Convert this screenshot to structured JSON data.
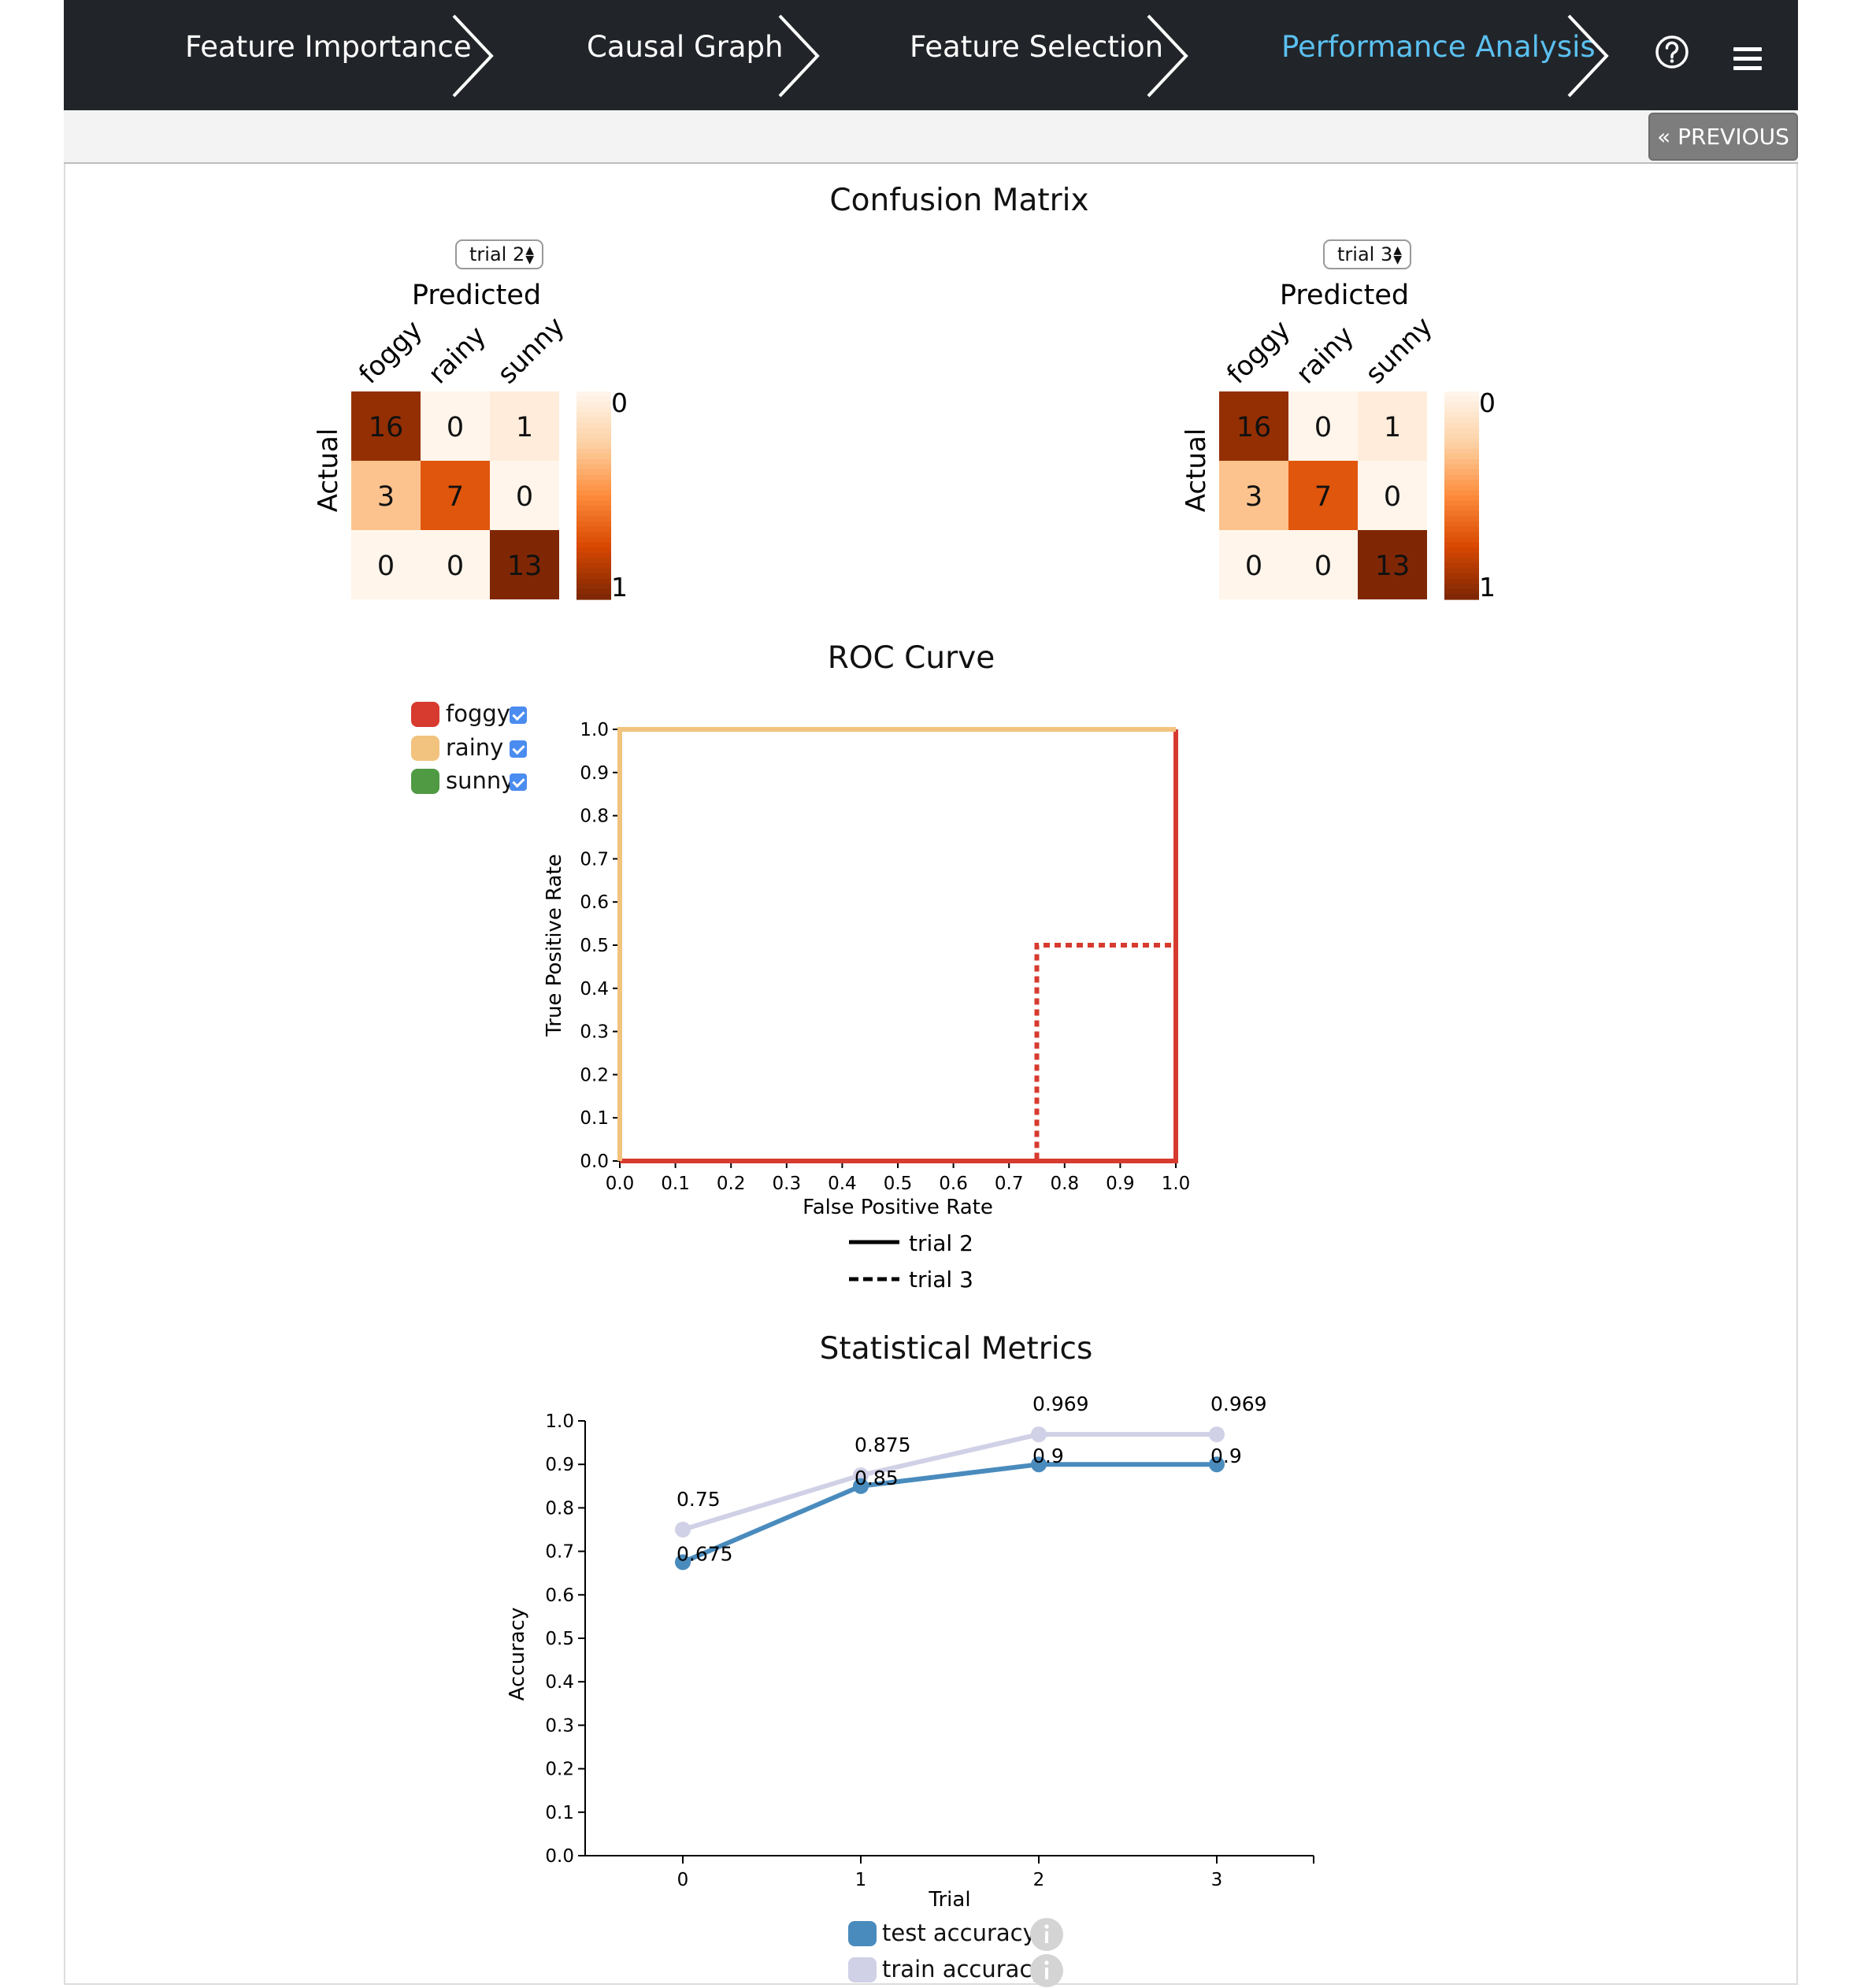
{
  "nav": {
    "steps": [
      "Feature Importance",
      "Causal Graph",
      "Feature Selection",
      "Performance Analysis"
    ],
    "active_step": "Performance Analysis"
  },
  "toolbar": {
    "previous_label": "« PREVIOUS"
  },
  "confusion": {
    "title": "Confusion Matrix",
    "predicted_label": "Predicted",
    "actual_label": "Actual",
    "classes": [
      "foggy",
      "rainy",
      "sunny"
    ],
    "scale_labels": [
      "0",
      "1"
    ],
    "matrices": [
      {
        "trial_label": "trial 2",
        "values": [
          [
            16,
            0,
            1
          ],
          [
            3,
            7,
            0
          ],
          [
            0,
            0,
            13
          ]
        ]
      },
      {
        "trial_label": "trial 3",
        "values": [
          [
            16,
            0,
            1
          ],
          [
            3,
            7,
            0
          ],
          [
            0,
            0,
            13
          ]
        ]
      }
    ]
  },
  "roc": {
    "title": "ROC Curve",
    "class_legend": [
      {
        "name": "foggy",
        "color": "#d73a2f",
        "checked": true
      },
      {
        "name": "rainy",
        "color": "#f2c37e",
        "checked": true
      },
      {
        "name": "sunny",
        "color": "#4f9a43",
        "checked": true
      }
    ],
    "trial_legend": [
      {
        "name": "trial 2",
        "style": "solid"
      },
      {
        "name": "trial 3",
        "style": "dashed"
      }
    ]
  },
  "metrics": {
    "title": "Statistical Metrics",
    "legend": [
      {
        "name": "test accuracy",
        "color": "#4a8bbd"
      },
      {
        "name": "train accuracy",
        "color": "#d0d0e6"
      }
    ]
  },
  "chart_data": [
    {
      "type": "line",
      "title": "ROC Curve",
      "xlabel": "False Positive Rate",
      "ylabel": "True Positive Rate",
      "xlim": [
        0,
        1
      ],
      "ylim": [
        0,
        1
      ],
      "xticks": [
        "0.0",
        "0.1",
        "0.2",
        "0.3",
        "0.4",
        "0.5",
        "0.6",
        "0.7",
        "0.8",
        "0.9",
        "1.0"
      ],
      "yticks": [
        "0.0",
        "0.1",
        "0.2",
        "0.3",
        "0.4",
        "0.5",
        "0.6",
        "0.7",
        "0.8",
        "0.9",
        "1.0"
      ],
      "series": [
        {
          "name": "foggy",
          "trial": "trial 2",
          "color": "#d73a2f",
          "style": "solid",
          "x": [
            0,
            1,
            1
          ],
          "y": [
            0,
            0,
            1
          ]
        },
        {
          "name": "foggy",
          "trial": "trial 3",
          "color": "#d73a2f",
          "style": "dashed",
          "x": [
            0,
            0.75,
            0.75,
            1,
            1
          ],
          "y": [
            0,
            0,
            0.5,
            0.5,
            1
          ]
        },
        {
          "name": "rainy",
          "trial": "trial 2",
          "color": "#f2c37e",
          "style": "solid",
          "x": [
            0,
            0,
            1
          ],
          "y": [
            0,
            1,
            1
          ]
        }
      ]
    },
    {
      "type": "line",
      "title": "Statistical Metrics",
      "xlabel": "Trial",
      "ylabel": "Accuracy",
      "ylim": [
        0,
        1
      ],
      "x": [
        0,
        1,
        2,
        3
      ],
      "yticks": [
        "0.0",
        "0.1",
        "0.2",
        "0.3",
        "0.4",
        "0.5",
        "0.6",
        "0.7",
        "0.8",
        "0.9",
        "1.0"
      ],
      "series": [
        {
          "name": "train accuracy",
          "color": "#d0d0e6",
          "values": [
            0.75,
            0.875,
            0.969,
            0.969
          ],
          "labels": [
            "0.75",
            "0.875",
            "0.969",
            "0.969"
          ]
        },
        {
          "name": "test accuracy",
          "color": "#4a8bbd",
          "values": [
            0.675,
            0.85,
            0.9,
            0.9
          ],
          "labels": [
            "0.675",
            "0.85",
            "0.9",
            "0.9"
          ]
        }
      ]
    }
  ]
}
